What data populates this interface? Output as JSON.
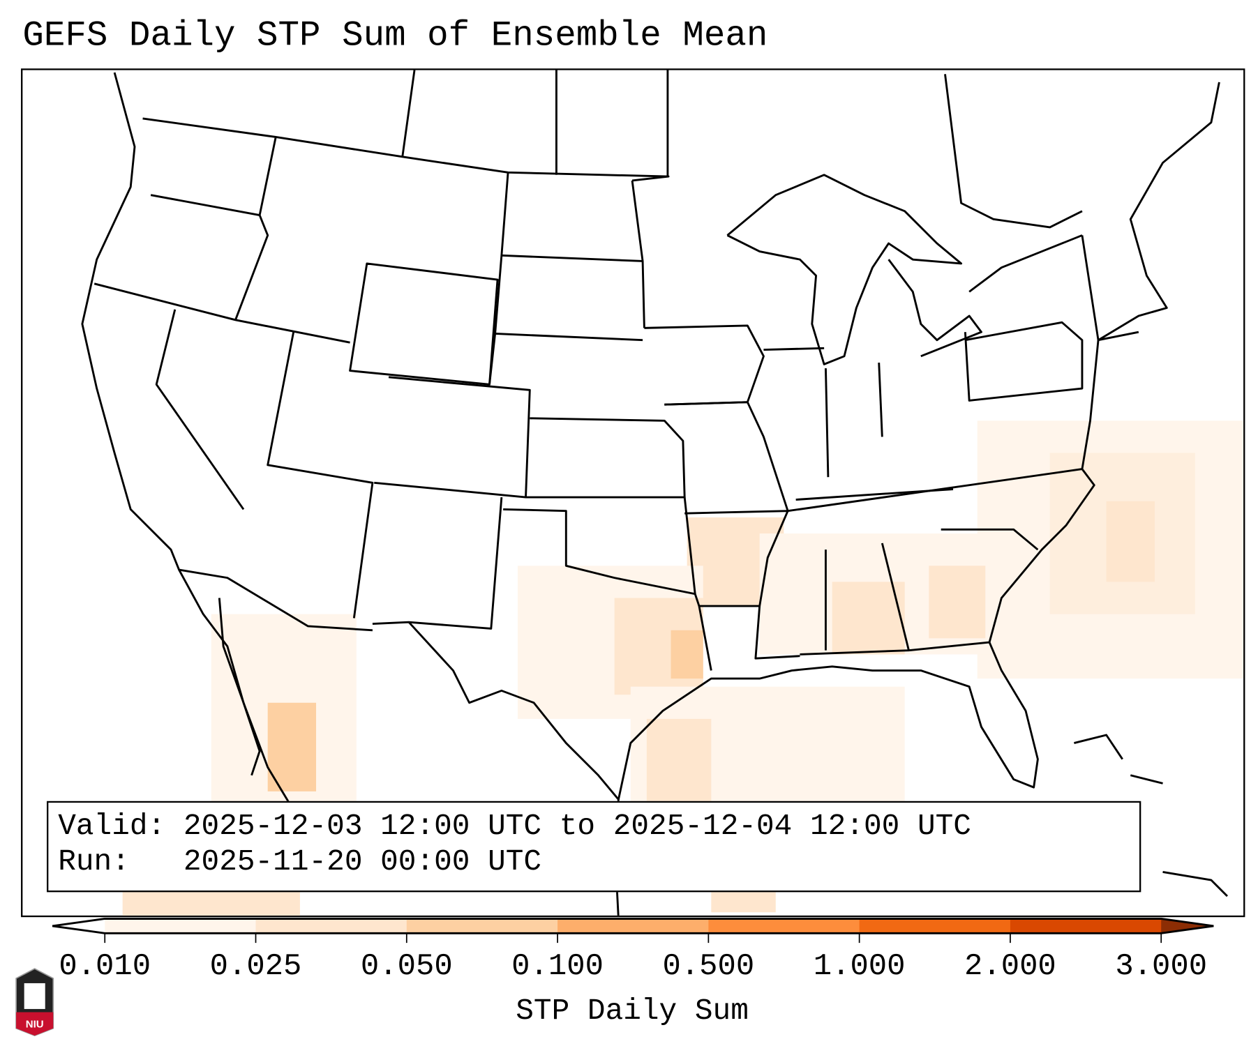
{
  "title": "GEFS Daily STP Sum of Ensemble Mean",
  "info": {
    "valid_label": "Valid:",
    "valid_value": "2025-12-03 12:00 UTC to 2025-12-04 12:00 UTC",
    "run_label": "Run:",
    "run_value": "2025-11-20 00:00 UTC"
  },
  "colorbar": {
    "label": "STP Daily Sum",
    "ticks": [
      "0.010",
      "0.025",
      "0.050",
      "0.100",
      "0.500",
      "1.000",
      "2.000",
      "3.000"
    ],
    "colors": [
      "#fff5eb",
      "#fee6ce",
      "#fdd0a2",
      "#fdae6b",
      "#fd8d3c",
      "#f16913",
      "#d94801"
    ],
    "under_color": "#ffffff",
    "over_color": "#8c2d04"
  },
  "logo": {
    "text": "NIU"
  }
}
